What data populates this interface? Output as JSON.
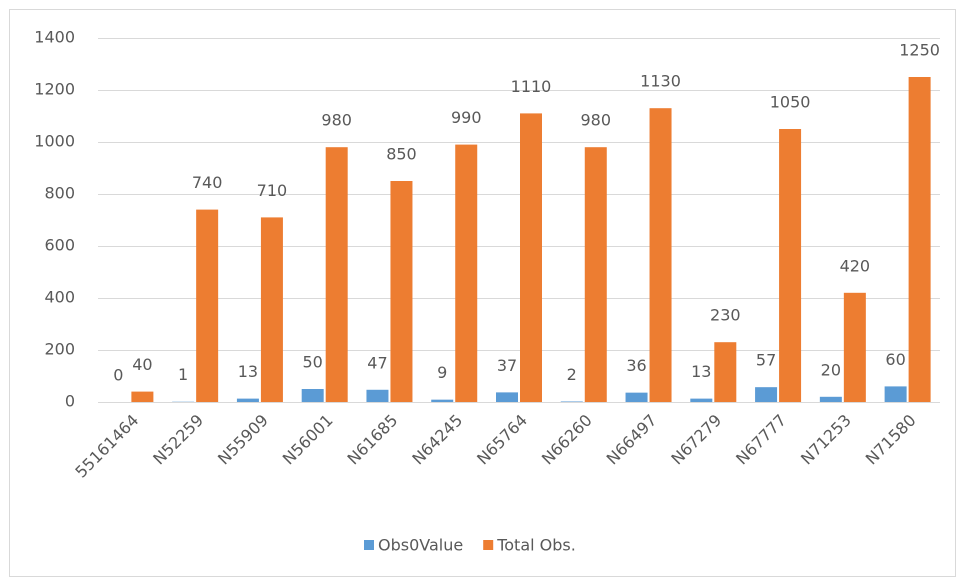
{
  "chart_data": {
    "type": "bar",
    "categories": [
      "55161464",
      "N52259",
      "N55909",
      "N56001",
      "N61685",
      "N64245",
      "N65764",
      "N66260",
      "N66497",
      "N67279",
      "N67777",
      "N71253",
      "N71580"
    ],
    "series": [
      {
        "name": "Obs0Value",
        "color": "#5b9bd5",
        "values": [
          0,
          1,
          13,
          50,
          47,
          9,
          37,
          2,
          36,
          13,
          57,
          20,
          60
        ]
      },
      {
        "name": "Total Obs.",
        "color": "#ed7d31",
        "values": [
          40,
          740,
          710,
          980,
          850,
          990,
          1110,
          980,
          1130,
          230,
          1050,
          420,
          1250
        ]
      }
    ],
    "ylim": [
      0,
      1400
    ],
    "yticks": [
      0,
      200,
      400,
      600,
      800,
      1000,
      1200,
      1400
    ],
    "grid": true,
    "legend": "bottom"
  }
}
